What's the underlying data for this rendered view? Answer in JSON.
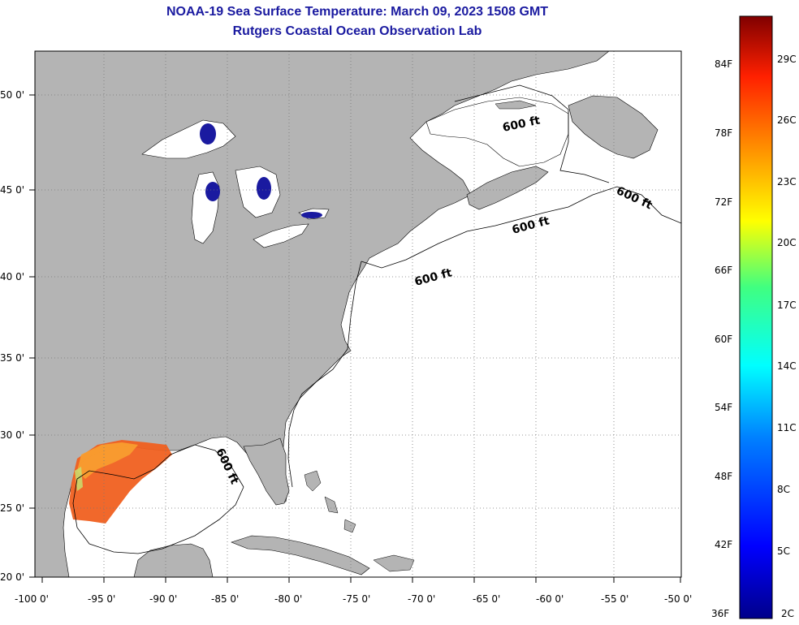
{
  "title": "NOAA-19 Sea Surface Temperature:  March 09, 2023 1508 GMT",
  "subtitle": "Rutgers Coastal Ocean Observation Lab",
  "map": {
    "lon_labels": [
      "-100 0'",
      "-95 0'",
      "-90 0'",
      "-85 0'",
      "-80 0'",
      "-75 0'",
      "-70 0'",
      "-65 0'",
      "-60 0'",
      "-55 0'",
      "-50 0'"
    ],
    "lat_labels": [
      "50 0'",
      "45 0'",
      "40 0'",
      "35 0'",
      "30 0'",
      "25 0'",
      "20 0'"
    ],
    "isobath_labels": [
      "600 ft",
      "600 ft",
      "600 ft",
      "600 ft",
      "600 ft"
    ],
    "colors": {
      "land": "#b4b4b4",
      "ocean": "#ffffff",
      "lakes": "#1a1aa0",
      "sst_warm": "#f06020"
    }
  },
  "colorbar": {
    "fahrenheit_labels": [
      "84F",
      "78F",
      "72F",
      "66F",
      "60F",
      "54F",
      "48F",
      "42F",
      "36F"
    ],
    "celsius_labels": [
      "29C",
      "26C",
      "23C",
      "20C",
      "17C",
      "14C",
      "11C",
      "8C",
      "5C",
      "2C"
    ]
  }
}
